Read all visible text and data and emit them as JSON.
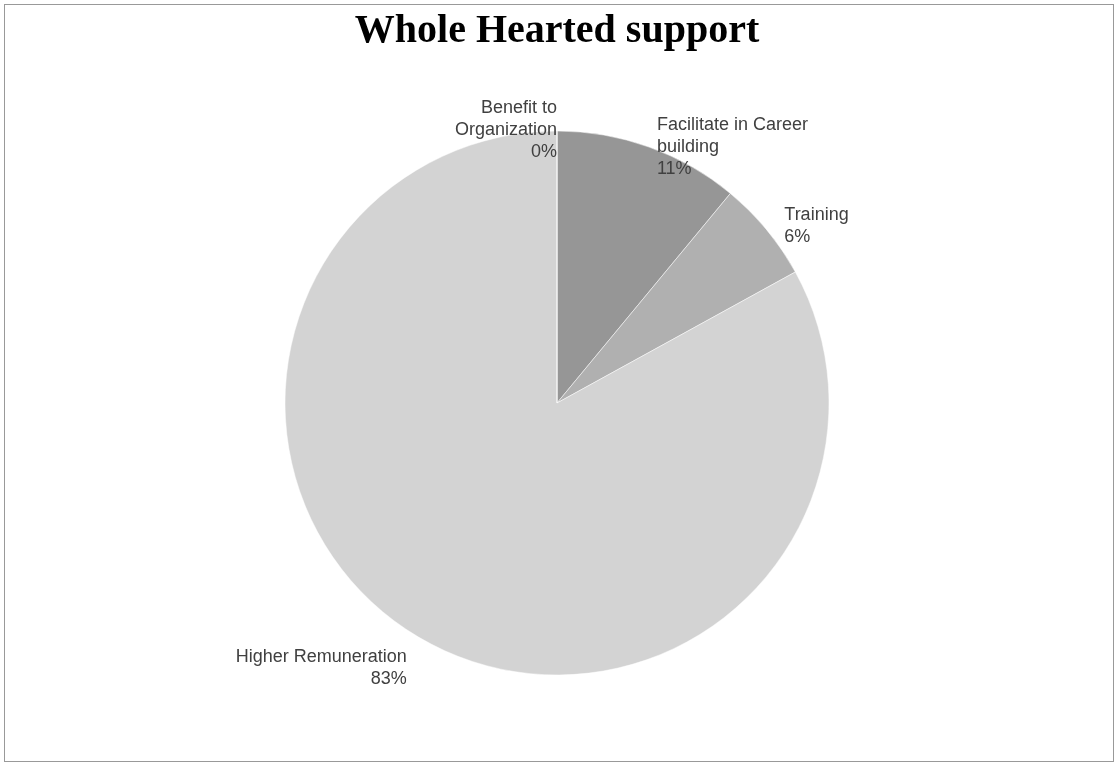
{
  "chart_data": {
    "type": "pie",
    "title": "Whole Hearted support",
    "categories": [
      "Facilitate in Career building",
      "Training",
      "Higher Remuneration",
      "Benefit to Organization"
    ],
    "values": [
      11,
      6,
      83,
      0
    ],
    "colors": [
      "#969696",
      "#b0b0b0",
      "#d3d3d3",
      "#a5a5a5"
    ],
    "value_labels": [
      "11%",
      "6%",
      "83%",
      "0%"
    ],
    "legend": false
  }
}
